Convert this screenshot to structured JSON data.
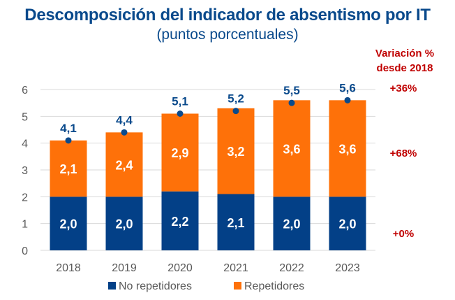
{
  "chart_data": {
    "type": "bar",
    "stacked": true,
    "title": "Descomposición del indicador de absentismo por IT",
    "subtitle": "(puntos porcentuales)",
    "categories": [
      "2018",
      "2019",
      "2020",
      "2021",
      "2022",
      "2023"
    ],
    "series": [
      {
        "name": "No repetidores",
        "color": "#034087",
        "values": [
          2.0,
          2.0,
          2.2,
          2.1,
          2.0,
          2.0
        ],
        "labels": [
          "2,0",
          "2,0",
          "2,2",
          "2,1",
          "2,0",
          "2,0"
        ]
      },
      {
        "name": "Repetidores",
        "color": "#fe7109",
        "values": [
          2.1,
          2.4,
          2.9,
          3.2,
          3.6,
          3.6
        ],
        "labels": [
          "2,1",
          "2,4",
          "2,9",
          "3,2",
          "3,6",
          "3,6"
        ]
      }
    ],
    "totals": {
      "color": "#0a4a8c",
      "values": [
        4.1,
        4.4,
        5.1,
        5.2,
        5.5,
        5.6
      ],
      "labels": [
        "4,1",
        "4,4",
        "5,1",
        "5,2",
        "5,5",
        "5,6"
      ]
    },
    "ylim": [
      0,
      6
    ],
    "yticks": [
      "0",
      "1",
      "2",
      "3",
      "4",
      "5",
      "6"
    ],
    "grid": true,
    "legend": "bottom",
    "variation": {
      "title_line1": "Variación %",
      "title_line2": "desde 2018",
      "total": "+36%",
      "repetidores": "+68%",
      "no_repetidores": "+0%"
    }
  }
}
